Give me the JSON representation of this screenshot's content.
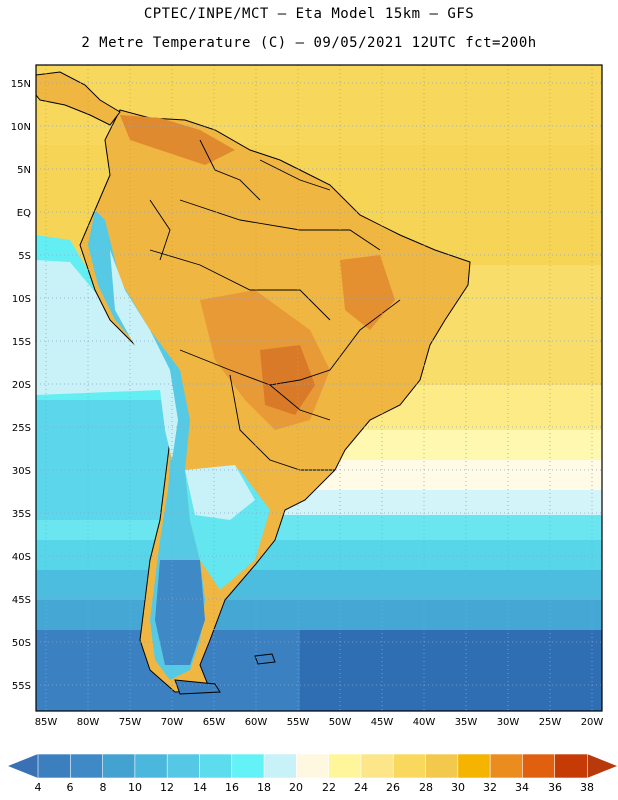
{
  "header": {
    "line1": "CPTEC/INPE/MCT –  Eta Model 15km – GFS",
    "line2": "2 Metre Temperature (C) – 09/05/2021 12UTC fct=200h"
  },
  "axes": {
    "lat_labels": [
      "15N",
      "10N",
      "5N",
      "EQ",
      "5S",
      "10S",
      "15S",
      "20S",
      "25S",
      "30S",
      "35S",
      "40S",
      "45S",
      "50S",
      "55S"
    ],
    "lon_labels": [
      "85W",
      "80W",
      "75W",
      "70W",
      "65W",
      "60W",
      "55W",
      "50W",
      "45W",
      "40W",
      "35W",
      "30W",
      "25W",
      "20W"
    ]
  },
  "colorbar": {
    "labels": [
      "4",
      "6",
      "8",
      "10",
      "12",
      "14",
      "16",
      "18",
      "20",
      "22",
      "24",
      "26",
      "28",
      "30",
      "32",
      "34",
      "36",
      "38"
    ],
    "colors": [
      "#3c7fbf",
      "#3f8ac6",
      "#44a2d0",
      "#4cb7dc",
      "#55c8e6",
      "#5cdcec",
      "#63f2f5",
      "#c8f1f8",
      "#fff8e1",
      "#fff59a",
      "#fde68a",
      "#f9d85e",
      "#f2c94c",
      "#f4b400",
      "#ea8c1e",
      "#e06010",
      "#c63a05"
    ],
    "low_color": "#3a71b5",
    "high_color": "#b83a0c"
  },
  "map": {
    "land_color": "#f0b642",
    "land_warm_color": "#e29032",
    "ocean_north_color": "#f6d35a",
    "andes_color": "#56c9e4"
  }
}
